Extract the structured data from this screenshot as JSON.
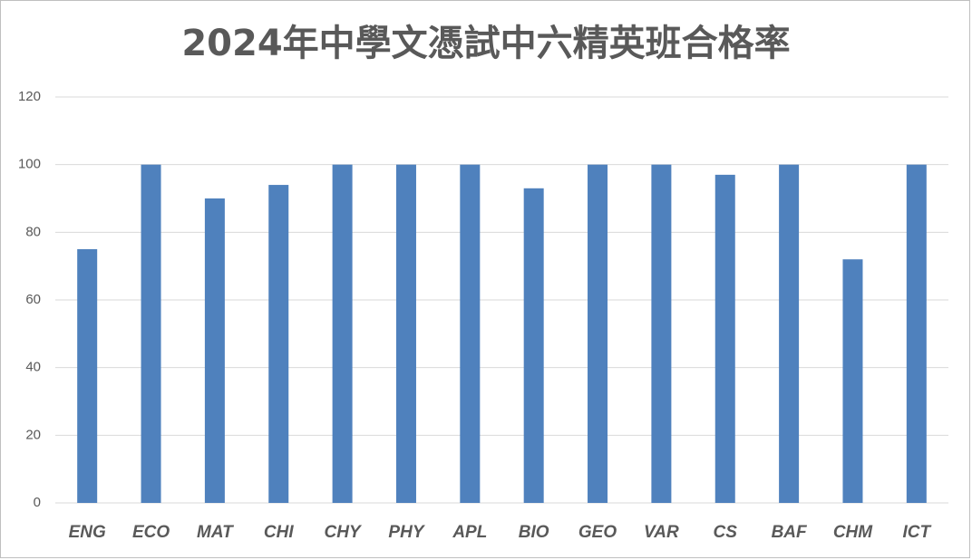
{
  "chart_data": {
    "type": "bar",
    "title": "2024年中學文憑試中六精英班合格率",
    "categories": [
      "ENG",
      "ECO",
      "MAT",
      "CHI",
      "CHY",
      "PHY",
      "APL",
      "BIO",
      "GEO",
      "VAR",
      "CS",
      "BAF",
      "CHM",
      "ICT"
    ],
    "values": [
      75,
      100,
      90,
      94,
      100,
      100,
      100,
      93,
      100,
      100,
      97,
      100,
      72,
      100
    ],
    "color": "#4f81bd",
    "ylim": [
      0,
      120
    ],
    "yticks": [
      0,
      20,
      40,
      60,
      80,
      100,
      120
    ],
    "grid": true
  }
}
